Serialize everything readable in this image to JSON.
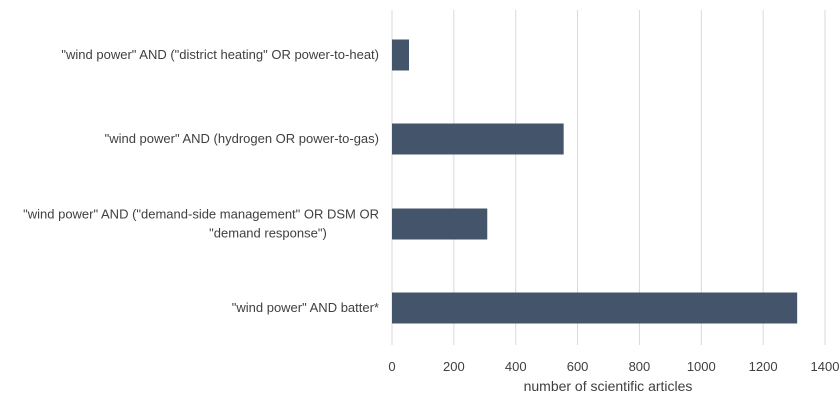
{
  "chart_data": {
    "type": "bar",
    "orientation": "horizontal",
    "categories": [
      "\"wind power\" AND (\"district heating\" OR power-to-heat)",
      "\"wind power\" AND (hydrogen OR power-to-gas)",
      "\"wind power\" AND (\"demand-side management\" OR DSM OR \"demand response\")",
      "\"wind power\" AND batter*"
    ],
    "category_lines": [
      [
        "\"wind power\" AND (\"district heating\" OR power-to-heat)"
      ],
      [
        "\"wind power\" AND (hydrogen OR power-to-gas)"
      ],
      [
        "\"wind power\" AND (\"demand-side management\" OR DSM OR",
        "\"demand response\")"
      ],
      [
        "\"wind power\" AND batter*"
      ]
    ],
    "values": [
      55,
      555,
      308,
      1310
    ],
    "title": "",
    "xlabel": "number of scientific articles",
    "ylabel": "",
    "xlim": [
      0,
      1400
    ],
    "xticks": [
      0,
      200,
      400,
      600,
      800,
      1000,
      1200,
      1400
    ],
    "grid": "vertical",
    "legend": "none",
    "bar_color": "#44546a",
    "grid_color": "#d9d9d9",
    "text_color": "#404040"
  }
}
